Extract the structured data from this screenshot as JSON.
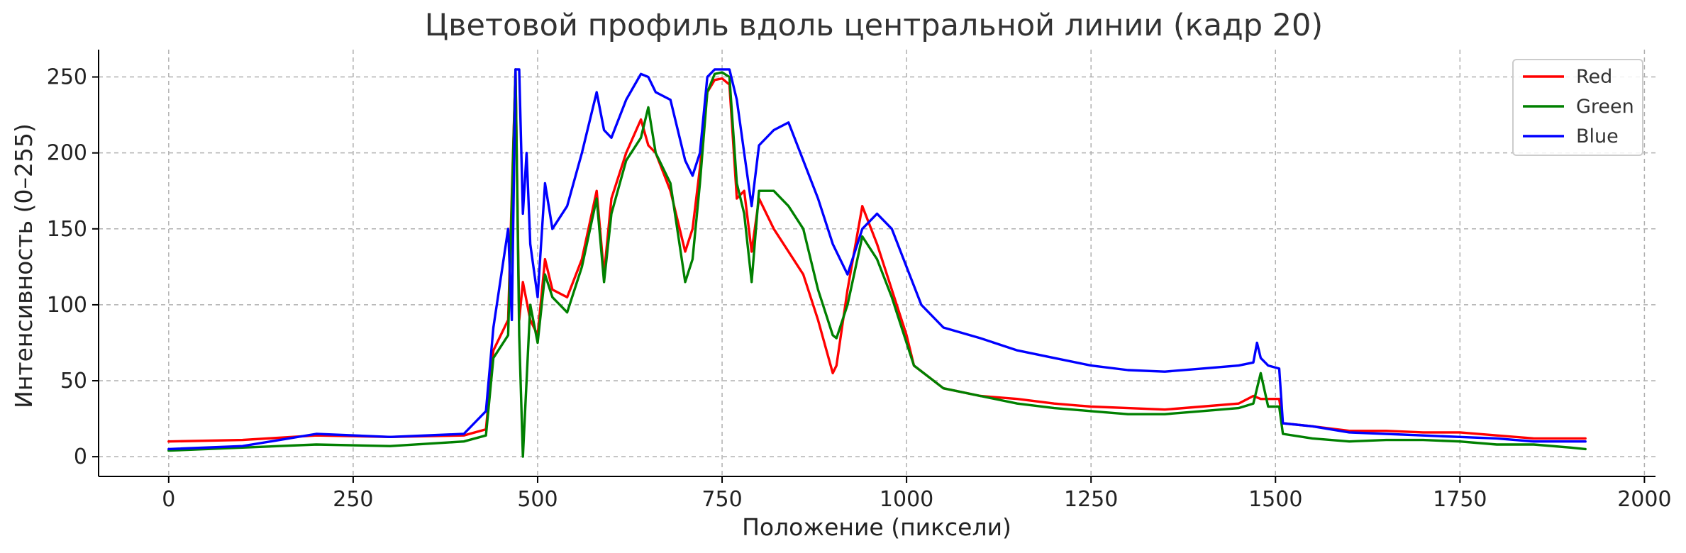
{
  "chart_data": {
    "type": "line",
    "title": "Цветовой профиль вдоль центральной линии (кадр 20)",
    "xlabel": "Положение (пиксели)",
    "ylabel": "Интенсивность (0–255)",
    "xlim": [
      -95,
      2015
    ],
    "ylim": [
      -13,
      268
    ],
    "xticks": [
      0,
      250,
      500,
      750,
      1000,
      1250,
      1500,
      1750,
      2000
    ],
    "xtick_labels": [
      "0",
      "250",
      "500",
      "750",
      "1000",
      "1250",
      "1500",
      "1750",
      "2000"
    ],
    "yticks": [
      0,
      50,
      100,
      150,
      200,
      250
    ],
    "ytick_labels": [
      "0",
      "50",
      "100",
      "150",
      "200",
      "250"
    ],
    "grid": true,
    "legend_position": "top-right",
    "series": [
      {
        "name": "Red",
        "color": "#ff0000",
        "x": [
          0,
          100,
          200,
          300,
          400,
          430,
          440,
          460,
          470,
          475,
          480,
          490,
          500,
          510,
          520,
          540,
          560,
          580,
          590,
          600,
          620,
          640,
          650,
          660,
          680,
          700,
          710,
          720,
          730,
          740,
          750,
          760,
          770,
          780,
          790,
          800,
          820,
          840,
          860,
          880,
          900,
          905,
          920,
          940,
          960,
          980,
          1000,
          1010,
          1050,
          1100,
          1150,
          1200,
          1250,
          1300,
          1350,
          1400,
          1450,
          1470,
          1480,
          1490,
          1505,
          1510,
          1550,
          1600,
          1650,
          1700,
          1750,
          1800,
          1850,
          1900,
          1920
        ],
        "y": [
          10,
          11,
          14,
          13,
          14,
          18,
          70,
          90,
          255,
          90,
          115,
          90,
          80,
          130,
          110,
          105,
          130,
          175,
          120,
          170,
          200,
          222,
          205,
          200,
          175,
          135,
          150,
          190,
          240,
          248,
          249,
          245,
          170,
          175,
          135,
          170,
          150,
          135,
          120,
          90,
          55,
          60,
          110,
          165,
          140,
          110,
          80,
          60,
          45,
          40,
          38,
          35,
          33,
          32,
          31,
          33,
          35,
          40,
          38,
          38,
          38,
          22,
          20,
          17,
          17,
          16,
          16,
          14,
          12,
          12,
          12
        ]
      },
      {
        "name": "Green",
        "color": "#008000",
        "x": [
          0,
          100,
          200,
          300,
          400,
          430,
          440,
          460,
          470,
          475,
          480,
          490,
          500,
          510,
          520,
          540,
          560,
          580,
          590,
          600,
          620,
          640,
          650,
          660,
          680,
          700,
          710,
          720,
          730,
          740,
          750,
          760,
          770,
          780,
          790,
          800,
          820,
          840,
          860,
          880,
          900,
          905,
          920,
          940,
          960,
          980,
          1000,
          1010,
          1050,
          1100,
          1150,
          1200,
          1250,
          1300,
          1350,
          1400,
          1450,
          1470,
          1480,
          1490,
          1505,
          1510,
          1550,
          1600,
          1650,
          1700,
          1750,
          1800,
          1850,
          1900,
          1920
        ],
        "y": [
          4,
          6,
          8,
          7,
          10,
          14,
          65,
          80,
          255,
          80,
          0,
          100,
          75,
          120,
          105,
          95,
          125,
          170,
          115,
          160,
          195,
          210,
          230,
          200,
          180,
          115,
          130,
          180,
          240,
          252,
          253,
          250,
          180,
          160,
          115,
          175,
          175,
          165,
          150,
          110,
          80,
          78,
          100,
          145,
          130,
          105,
          75,
          60,
          45,
          40,
          35,
          32,
          30,
          28,
          28,
          30,
          32,
          35,
          55,
          33,
          33,
          15,
          12,
          10,
          11,
          11,
          10,
          8,
          8,
          6,
          5
        ]
      },
      {
        "name": "Blue",
        "color": "#0000ff",
        "x": [
          0,
          100,
          200,
          300,
          400,
          430,
          440,
          460,
          465,
          470,
          475,
          480,
          485,
          490,
          500,
          510,
          520,
          540,
          560,
          580,
          590,
          600,
          620,
          640,
          650,
          660,
          680,
          700,
          710,
          720,
          730,
          740,
          750,
          760,
          770,
          780,
          790,
          800,
          820,
          840,
          860,
          880,
          900,
          920,
          940,
          960,
          980,
          1000,
          1020,
          1050,
          1100,
          1150,
          1200,
          1250,
          1300,
          1350,
          1400,
          1450,
          1470,
          1475,
          1480,
          1490,
          1505,
          1510,
          1550,
          1600,
          1650,
          1700,
          1750,
          1800,
          1850,
          1900,
          1920
        ],
        "y": [
          5,
          7,
          15,
          13,
          15,
          30,
          85,
          150,
          90,
          255,
          255,
          160,
          200,
          140,
          105,
          180,
          150,
          165,
          200,
          240,
          215,
          210,
          235,
          252,
          250,
          240,
          235,
          195,
          185,
          200,
          250,
          255,
          255,
          255,
          235,
          200,
          165,
          205,
          215,
          220,
          195,
          170,
          140,
          120,
          150,
          160,
          150,
          125,
          100,
          85,
          78,
          70,
          65,
          60,
          57,
          56,
          58,
          60,
          62,
          75,
          65,
          60,
          58,
          22,
          20,
          16,
          15,
          14,
          13,
          12,
          10,
          10,
          10
        ]
      }
    ]
  }
}
